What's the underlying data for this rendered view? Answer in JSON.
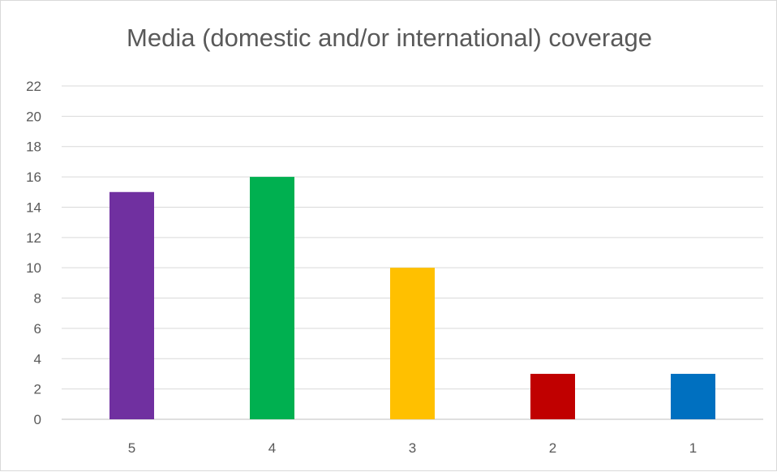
{
  "chart_data": {
    "type": "bar",
    "title": "Media (domestic and/or international) coverage",
    "xlabel": "",
    "ylabel": "",
    "categories": [
      "5",
      "4",
      "3",
      "2",
      "1"
    ],
    "values": [
      15,
      16,
      10,
      3,
      3
    ],
    "colors": [
      "#7030a0",
      "#00b050",
      "#ffc000",
      "#c00000",
      "#0070c0"
    ],
    "ylim": [
      0,
      22
    ],
    "yticks": [
      0,
      2,
      4,
      6,
      8,
      10,
      12,
      14,
      16,
      18,
      20,
      22
    ],
    "grid": true,
    "legend": "none"
  }
}
